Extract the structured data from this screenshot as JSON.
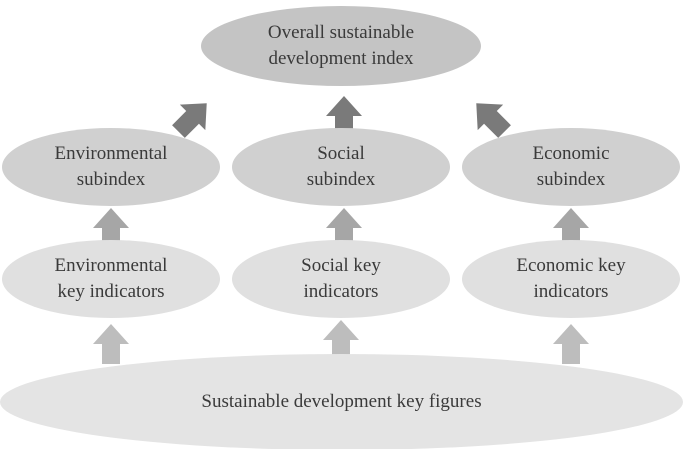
{
  "diagram": {
    "top": {
      "line1": "Overall sustainable",
      "line2": "development index"
    },
    "subindices": [
      {
        "line1": "Environmental",
        "line2": "subindex"
      },
      {
        "line1": "Social",
        "line2": "subindex"
      },
      {
        "line1": "Economic",
        "line2": "subindex"
      }
    ],
    "indicators": [
      {
        "line1": "Environmental",
        "line2": "key indicators"
      },
      {
        "line1": "Social key",
        "line2": "indicators"
      },
      {
        "line1": "Economic key",
        "line2": "indicators"
      }
    ],
    "base": {
      "label": "Sustainable development key figures"
    }
  },
  "colors": {
    "top_fill": "#c4c4c4",
    "subindex_fill": "#d0d0d0",
    "indicator_fill": "#e0e0e0",
    "base_fill": "#e4e4e4",
    "arrow_dark": "#7a7a7a",
    "arrow_mid": "#a6a6a6",
    "arrow_light": "#bdbdbd",
    "text": "#3a3a3a"
  }
}
